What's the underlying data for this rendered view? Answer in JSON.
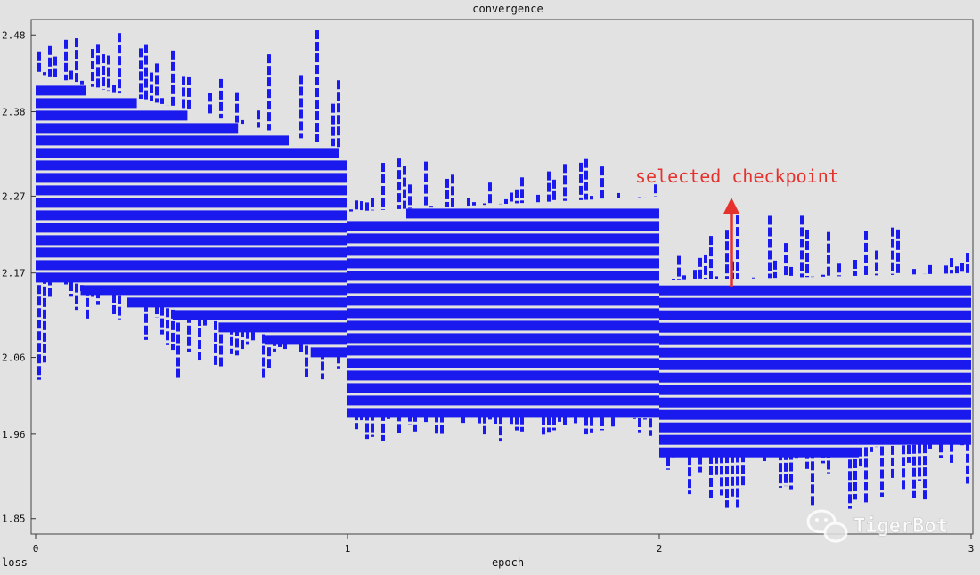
{
  "chart_data": {
    "type": "line",
    "title": "convergence",
    "xlabel": "epoch",
    "ylabel": "loss",
    "xlim": [
      0,
      3
    ],
    "ylim": [
      1.83,
      2.5
    ],
    "x_ticks": [
      0,
      1,
      2,
      3
    ],
    "y_ticks": [
      {
        "value": 2.48,
        "label": "2.48"
      },
      {
        "value": 2.38,
        "label": "2.38"
      },
      {
        "value": 2.27,
        "label": "2.27"
      },
      {
        "value": 2.17,
        "label": "2.17"
      },
      {
        "value": 2.06,
        "label": "2.06"
      },
      {
        "value": 1.96,
        "label": "1.96"
      },
      {
        "value": 1.85,
        "label": "1.85"
      }
    ],
    "grid": false,
    "series_color": "#1a1aee",
    "series": [
      {
        "epoch_bands": [
          {
            "x_start": 0.0,
            "x_end": 1.0,
            "top_start": 2.43,
            "top_end": 2.33,
            "bottom_start": 2.17,
            "bottom_end": 2.06,
            "upper_spike": 2.49,
            "lower_spike": 2.03
          },
          {
            "x_start": 1.0,
            "x_end": 2.0,
            "top_start": 2.25,
            "top_end": 2.27,
            "bottom_start": 1.99,
            "bottom_end": 1.98,
            "upper_spike": 2.32,
            "lower_spike": 1.95
          },
          {
            "x_start": 2.0,
            "x_end": 3.0,
            "top_start": 2.16,
            "top_end": 2.17,
            "bottom_start": 1.93,
            "bottom_end": 1.95,
            "upper_spike": 2.25,
            "lower_spike": 1.86
          }
        ],
        "points": [
          [
            0.0,
            2.49
          ],
          [
            0.01,
            2.43
          ],
          [
            0.05,
            2.43
          ],
          [
            0.1,
            2.42
          ],
          [
            0.15,
            2.41
          ],
          [
            0.2,
            2.4
          ],
          [
            0.25,
            2.4
          ],
          [
            0.3,
            2.39
          ],
          [
            0.35,
            2.39
          ],
          [
            0.4,
            2.38
          ],
          [
            0.45,
            2.38
          ],
          [
            0.5,
            2.38
          ],
          [
            0.55,
            2.37
          ],
          [
            0.6,
            2.37
          ],
          [
            0.65,
            2.36
          ],
          [
            0.7,
            2.36
          ],
          [
            0.75,
            2.36
          ],
          [
            0.8,
            2.35
          ],
          [
            0.85,
            2.35
          ],
          [
            0.9,
            2.35
          ],
          [
            0.95,
            2.34
          ],
          [
            1.0,
            2.33
          ],
          [
            1.02,
            2.25
          ],
          [
            1.05,
            2.26
          ],
          [
            1.1,
            2.25
          ],
          [
            1.15,
            2.26
          ],
          [
            1.2,
            2.25
          ],
          [
            1.25,
            2.26
          ],
          [
            1.3,
            2.27
          ],
          [
            1.35,
            2.26
          ],
          [
            1.4,
            2.26
          ],
          [
            1.45,
            2.26
          ],
          [
            1.5,
            2.25
          ],
          [
            1.55,
            2.26
          ],
          [
            1.6,
            2.25
          ],
          [
            1.65,
            2.26
          ],
          [
            1.7,
            2.26
          ],
          [
            1.75,
            2.26
          ],
          [
            1.8,
            2.27
          ],
          [
            1.85,
            2.27
          ],
          [
            1.9,
            2.27
          ],
          [
            1.95,
            2.27
          ],
          [
            2.0,
            2.27
          ],
          [
            2.02,
            2.16
          ],
          [
            2.05,
            2.15
          ],
          [
            2.1,
            2.15
          ],
          [
            2.15,
            2.16
          ],
          [
            2.2,
            2.16
          ],
          [
            2.25,
            2.15
          ],
          [
            2.3,
            2.16
          ],
          [
            2.35,
            2.16
          ],
          [
            2.4,
            2.17
          ],
          [
            2.45,
            2.16
          ],
          [
            2.5,
            2.17
          ],
          [
            2.55,
            2.17
          ],
          [
            2.6,
            2.16
          ],
          [
            2.65,
            2.17
          ],
          [
            2.7,
            2.17
          ],
          [
            2.75,
            2.17
          ],
          [
            2.8,
            2.17
          ],
          [
            2.85,
            2.17
          ],
          [
            2.9,
            2.17
          ],
          [
            2.95,
            2.17
          ],
          [
            3.0,
            2.16
          ]
        ]
      }
    ],
    "annotations": [
      {
        "text": "selected checkpoint",
        "x": 2.23,
        "y": 2.15,
        "color": "#e5322d"
      }
    ],
    "watermark": {
      "text": "TigerBot"
    }
  }
}
